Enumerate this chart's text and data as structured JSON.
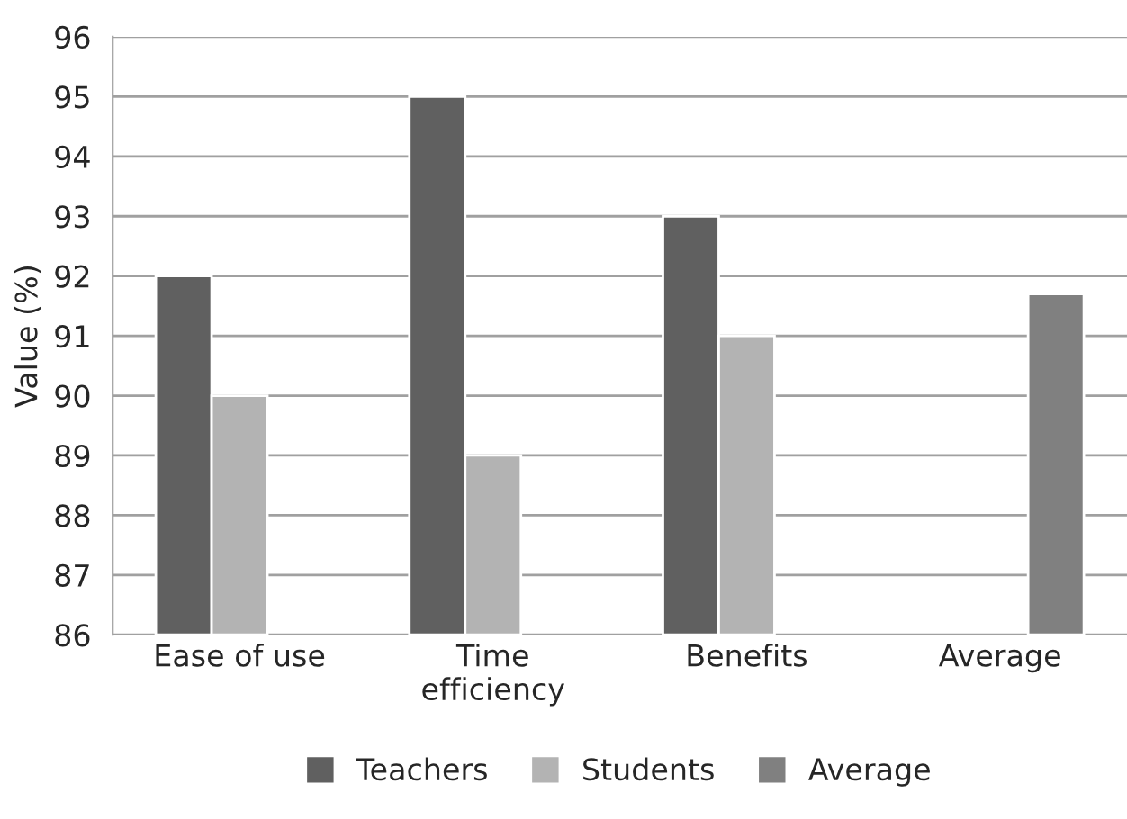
{
  "chart_data": {
    "type": "bar",
    "ylabel": "Value (%)",
    "categories": [
      "Ease of use",
      "Time\nefficiency",
      "Benefits",
      "Average"
    ],
    "series": [
      {
        "name": "Teachers",
        "color": "#606060",
        "values": [
          92,
          95,
          93,
          null
        ]
      },
      {
        "name": "Students",
        "color": "#b3b3b3",
        "values": [
          90,
          89,
          91,
          null
        ]
      },
      {
        "name": "Average",
        "color": "#808080",
        "values": [
          null,
          null,
          null,
          91.7
        ]
      }
    ],
    "ylim": [
      86,
      96
    ],
    "yticks": [
      86,
      87,
      88,
      89,
      90,
      91,
      92,
      93,
      94,
      95,
      96
    ],
    "grid": "y",
    "legend": "bottom"
  }
}
